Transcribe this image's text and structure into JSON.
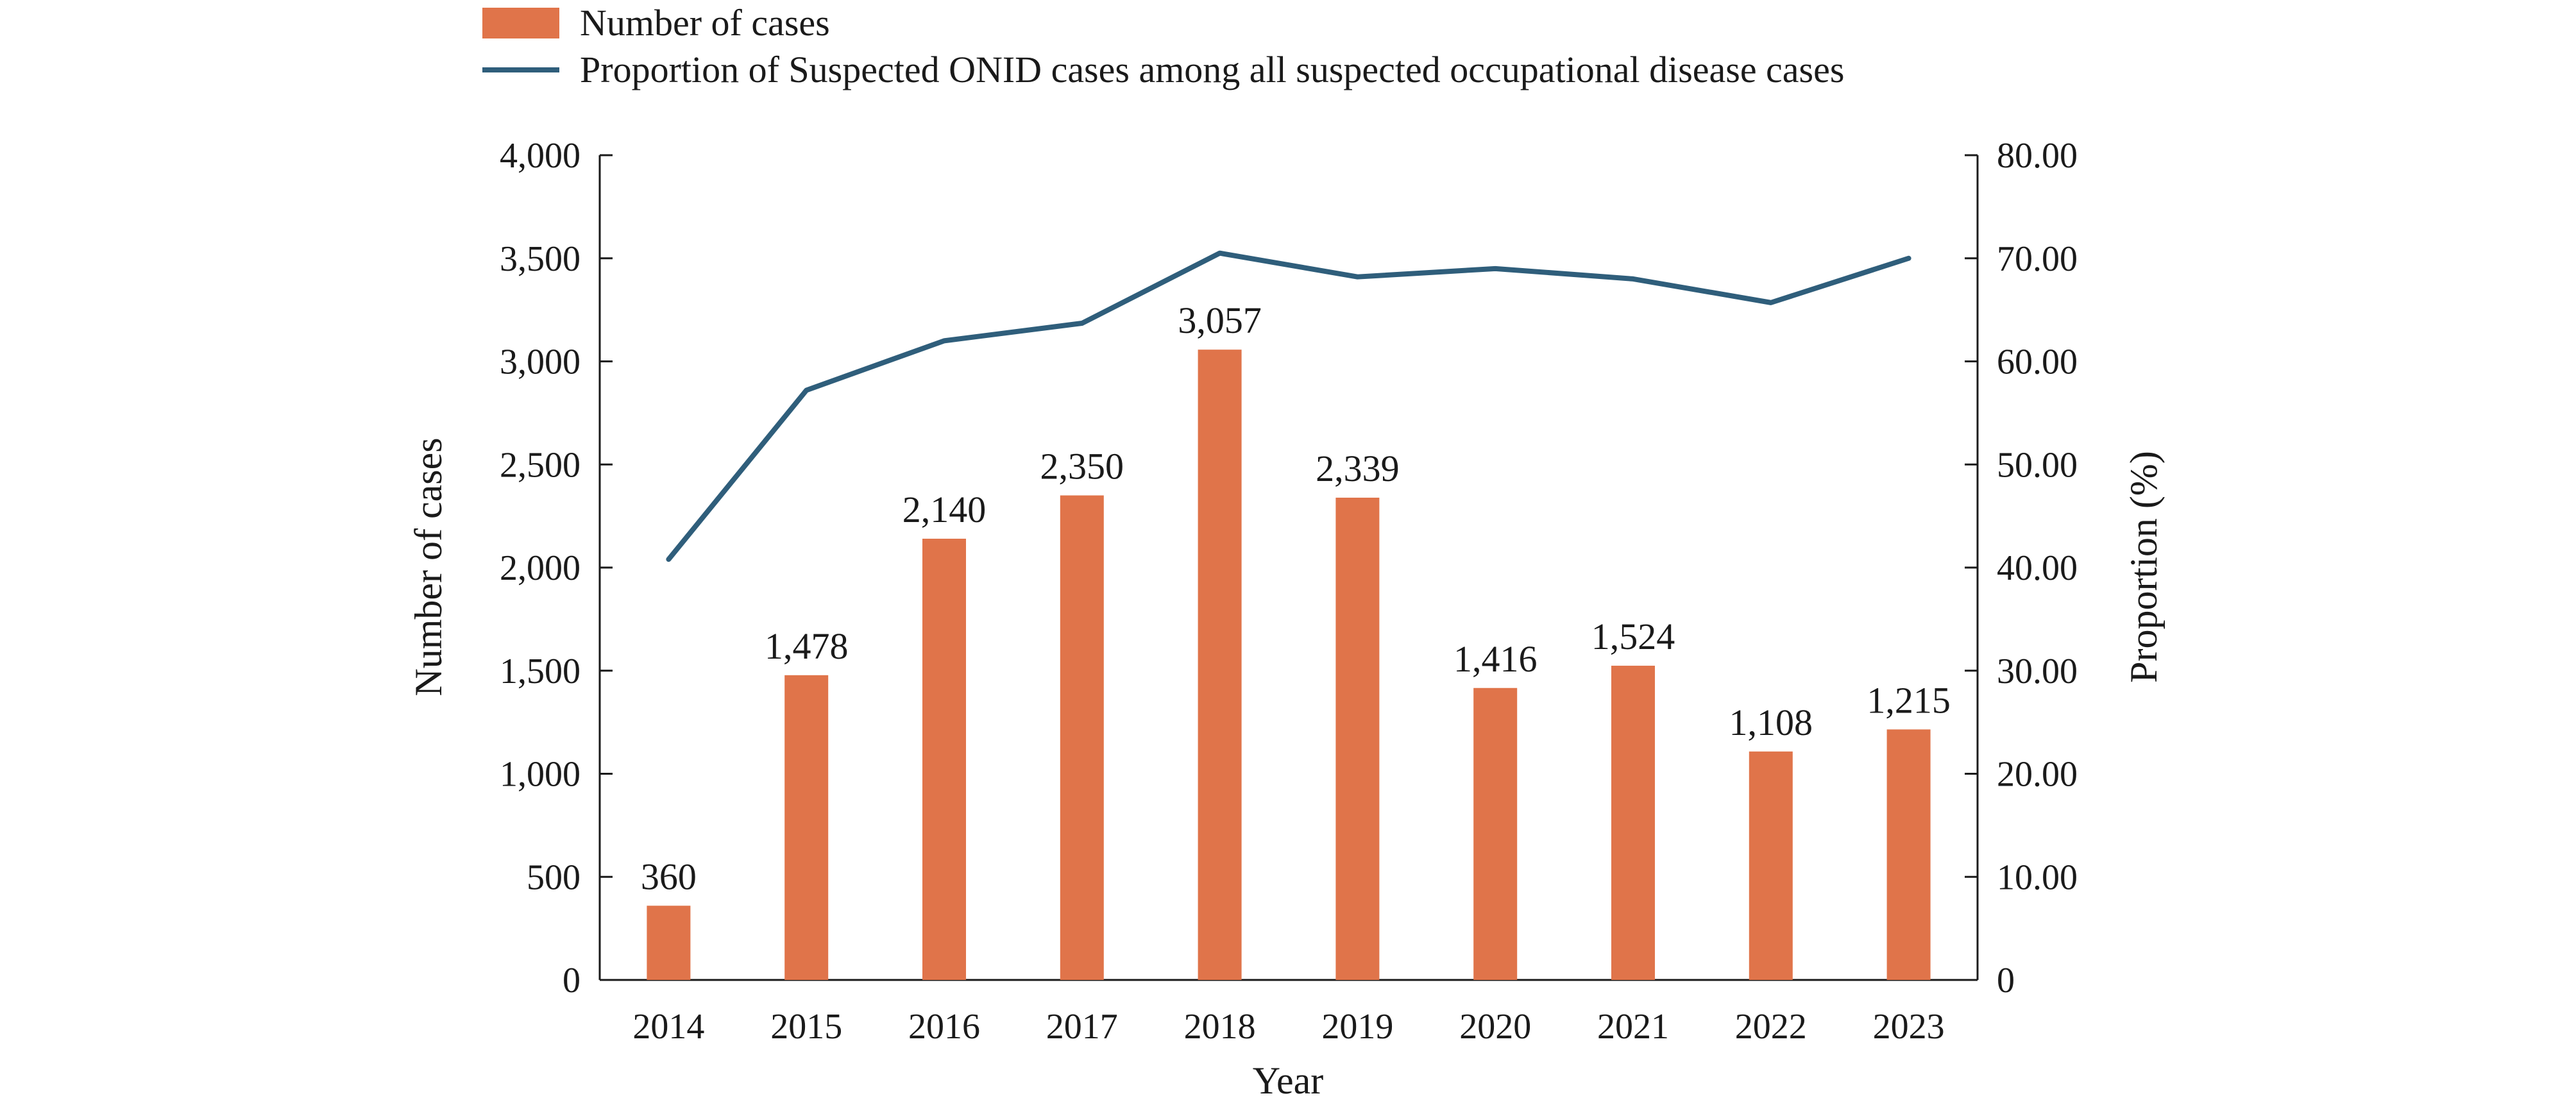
{
  "chart_data": {
    "type": "bar",
    "categories": [
      "2014",
      "2015",
      "2016",
      "2017",
      "2018",
      "2019",
      "2020",
      "2021",
      "2022",
      "2023"
    ],
    "series": [
      {
        "name": "Number of cases",
        "type": "bar",
        "axis": "left",
        "color": "#E0744A",
        "values": [
          360,
          1478,
          2140,
          2350,
          3057,
          2339,
          1416,
          1524,
          1108,
          1215
        ],
        "labels": [
          "360",
          "1,478",
          "2,140",
          "2,350",
          "3,057",
          "2,339",
          "1,416",
          "1,524",
          "1,108",
          "1,215"
        ]
      },
      {
        "name": "Proportion of Suspected ONID cases among all suspected occupational disease cases",
        "type": "line",
        "axis": "right",
        "color": "#2F5E7B",
        "values": [
          40.8,
          57.2,
          62.0,
          63.7,
          70.5,
          68.2,
          69.0,
          68.0,
          65.7,
          70.0
        ]
      }
    ],
    "xlabel": "Year",
    "ylabel": "Number of cases",
    "ylabel_right": "Proportion (%)",
    "ylim": [
      0,
      4000
    ],
    "ylim_right": [
      0,
      80
    ],
    "yticks": [
      "0",
      "500",
      "1,000",
      "1,500",
      "2,000",
      "2,500",
      "3,000",
      "3,500",
      "4,000"
    ],
    "yticks_right": [
      "0",
      "10.00",
      "20.00",
      "30.00",
      "40.00",
      "50.00",
      "60.00",
      "70.00",
      "80.00"
    ],
    "grid": false,
    "legend_position": "top"
  }
}
